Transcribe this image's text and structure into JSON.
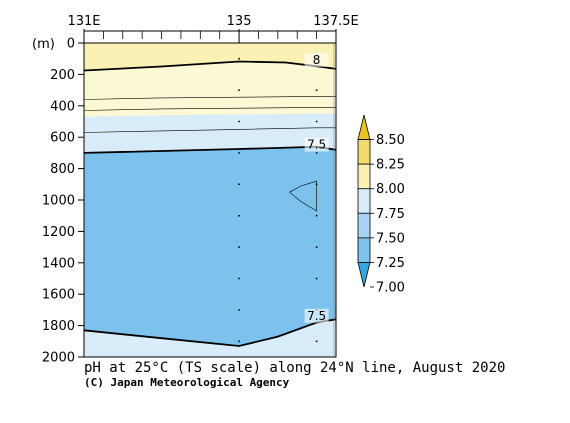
{
  "chart_data": {
    "type": "heatmap",
    "title": "pH at 25°C (TS scale) along 24°N line, August 2020",
    "credit": "(C) Japan Meteorological Agency",
    "ylabel": "(m)",
    "x_tick_labels": [
      {
        "label": "131E",
        "lon": 131
      },
      {
        "label": "135",
        "lon": 135
      },
      {
        "label": "137.5E",
        "lon": 137.5
      }
    ],
    "x_range": [
      131,
      137.5
    ],
    "y_ticks": [
      0,
      200,
      400,
      600,
      800,
      1000,
      1200,
      1400,
      1600,
      1800,
      2000
    ],
    "y_range": [
      0,
      2000
    ],
    "station_lons": [
      135,
      137
    ],
    "colorbar": {
      "levels": [
        "8.50",
        "8.25",
        "8.00",
        "7.75",
        "7.50",
        "7.25",
        "7.00"
      ],
      "colors": [
        "#e8c21e",
        "#f2dc6e",
        "#fbf1b4",
        "#d9ecfa",
        "#a9d3f4",
        "#7cc2ed",
        "#36a5e0"
      ]
    },
    "bands": [
      {
        "name": "pH 8.00-8.25",
        "color": "#fbf1b4",
        "top": [
          [
            131,
            0
          ],
          [
            137.5,
            0
          ]
        ],
        "bottom": [
          [
            131,
            175
          ],
          [
            133,
            150
          ],
          [
            135,
            118
          ],
          [
            136.2,
            124
          ],
          [
            137,
            148
          ],
          [
            137.5,
            165
          ]
        ]
      },
      {
        "name": "pH 7.75-8.00",
        "color": "#fbf8d4",
        "top": [
          [
            131,
            175
          ],
          [
            133,
            150
          ],
          [
            135,
            118
          ],
          [
            136.2,
            124
          ],
          [
            137,
            148
          ],
          [
            137.5,
            165
          ]
        ],
        "bottom": [
          [
            131,
            470
          ],
          [
            133,
            460
          ],
          [
            135,
            455
          ],
          [
            137,
            450
          ],
          [
            137.5,
            450
          ]
        ]
      },
      {
        "name": "pH 7.50-7.75",
        "color": "#d9ecfa",
        "top": [
          [
            131,
            470
          ],
          [
            133,
            460
          ],
          [
            135,
            455
          ],
          [
            137,
            450
          ],
          [
            137.5,
            450
          ]
        ],
        "bottom": [
          [
            131,
            700
          ],
          [
            133,
            688
          ],
          [
            135,
            675
          ],
          [
            136.5,
            665
          ],
          [
            137,
            660
          ],
          [
            137.5,
            680
          ]
        ]
      },
      {
        "name": "pH 7.25-7.50",
        "color": "#7cc2ed",
        "top": [
          [
            131,
            700
          ],
          [
            133,
            688
          ],
          [
            135,
            675
          ],
          [
            136.5,
            665
          ],
          [
            137,
            660
          ],
          [
            137.5,
            680
          ]
        ],
        "bottom": [
          [
            131,
            1830
          ],
          [
            133,
            1880
          ],
          [
            135,
            1930
          ],
          [
            136,
            1870
          ],
          [
            137,
            1780
          ],
          [
            137.5,
            1760
          ]
        ]
      },
      {
        "name": "pH 7.50-7.75 deep",
        "color": "#d9ecfa",
        "top": [
          [
            131,
            1830
          ],
          [
            133,
            1880
          ],
          [
            135,
            1930
          ],
          [
            136,
            1870
          ],
          [
            137,
            1780
          ],
          [
            137.5,
            1760
          ]
        ],
        "bottom": [
          [
            131,
            2000
          ],
          [
            137.5,
            2000
          ]
        ]
      }
    ],
    "contours": [
      {
        "label": "8",
        "lon": 137,
        "depth": 120,
        "points": [
          [
            131,
            175
          ],
          [
            133,
            150
          ],
          [
            135,
            118
          ],
          [
            136.2,
            124
          ],
          [
            137,
            148
          ],
          [
            137.5,
            165
          ]
        ]
      },
      {
        "label": "7.5",
        "lon": 137,
        "depth": 660,
        "points": [
          [
            131,
            700
          ],
          [
            133,
            688
          ],
          [
            135,
            675
          ],
          [
            136.5,
            665
          ],
          [
            137,
            660
          ],
          [
            137.5,
            680
          ]
        ]
      },
      {
        "label": "7.5",
        "lon": 137,
        "depth": 1750,
        "points": [
          [
            131,
            1830
          ],
          [
            133,
            1880
          ],
          [
            135,
            1930
          ],
          [
            136,
            1870
          ],
          [
            137,
            1780
          ],
          [
            137.5,
            1760
          ]
        ]
      },
      {
        "label": "",
        "points": [
          [
            131,
            360
          ],
          [
            133,
            350
          ],
          [
            135,
            345
          ],
          [
            137,
            340
          ],
          [
            137.5,
            340
          ]
        ]
      },
      {
        "label": "",
        "points": [
          [
            131,
            430
          ],
          [
            133,
            420
          ],
          [
            135,
            415
          ],
          [
            137,
            410
          ],
          [
            137.5,
            410
          ]
        ]
      },
      {
        "label": "",
        "points": [
          [
            131,
            570
          ],
          [
            133,
            560
          ],
          [
            135,
            550
          ],
          [
            137,
            540
          ],
          [
            137.5,
            540
          ]
        ]
      },
      {
        "label": "",
        "points": [
          [
            136.3,
            950
          ],
          [
            136.6,
            910
          ],
          [
            137,
            880
          ],
          [
            137,
            1070
          ],
          [
            136.6,
            1010
          ],
          [
            136.3,
            950
          ]
        ]
      }
    ]
  }
}
